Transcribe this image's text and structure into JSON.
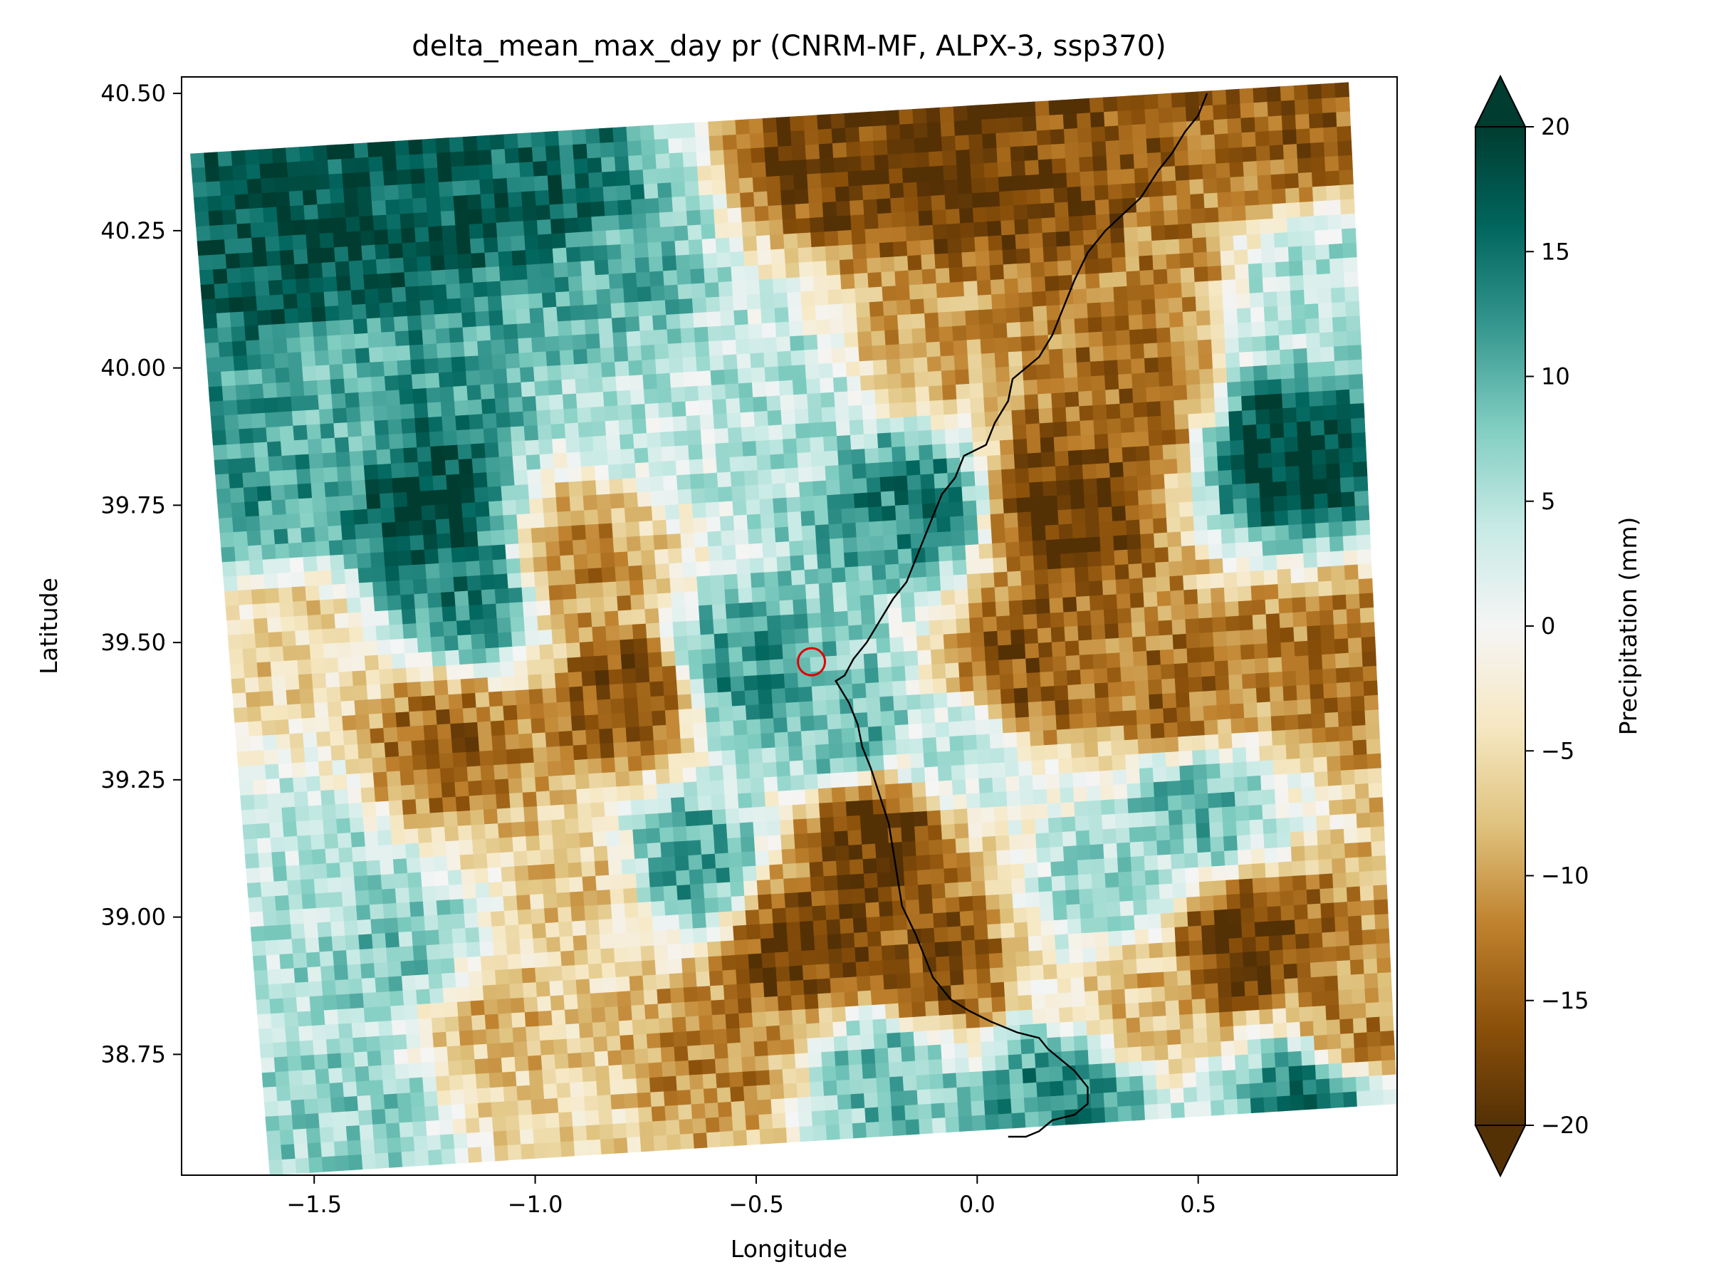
{
  "chart_data": {
    "type": "heatmap",
    "title": "delta_mean_max_day pr (CNRM-MF, ALPX-3, ssp370)",
    "xlabel": "Longitude",
    "ylabel": "Latitude",
    "xlim": [
      -1.8,
      0.95
    ],
    "ylim": [
      38.53,
      40.53
    ],
    "xticks": [
      -1.5,
      -1.0,
      -0.5,
      0.0,
      0.5
    ],
    "xtick_labels": [
      "−1.5",
      "−1.0",
      "−0.5",
      "0.0",
      "0.5"
    ],
    "yticks": [
      38.75,
      39.0,
      39.25,
      39.5,
      39.75,
      40.0,
      40.25,
      40.5
    ],
    "ytick_labels": [
      "38.75",
      "39.00",
      "39.25",
      "39.50",
      "39.75",
      "40.00",
      "40.25",
      "40.50"
    ],
    "colorbar": {
      "label": "Precipitation (mm)",
      "range": [
        -20,
        20
      ],
      "extend": "both",
      "cmap": "BrBG",
      "ticks": [
        -20,
        -15,
        -10,
        -5,
        0,
        5,
        10,
        15,
        20
      ],
      "tick_labels": [
        "−20",
        "−15",
        "−10",
        "−5",
        "0",
        "5",
        "10",
        "15",
        "20"
      ]
    },
    "grid_domain_corners": {
      "upper_left": [
        -1.78,
        40.39
      ],
      "upper_right": [
        0.84,
        40.52
      ],
      "lower_right": [
        0.95,
        38.66
      ],
      "lower_left": [
        -1.6,
        38.53
      ]
    },
    "grid_resolution": {
      "cols": 85,
      "rows": 70
    },
    "value_regions": [
      {
        "lon": -1.55,
        "lat": 40.25,
        "value": 18
      },
      {
        "lon": -1.3,
        "lat": 40.35,
        "value": 17
      },
      {
        "lon": -1.0,
        "lat": 40.3,
        "value": 16
      },
      {
        "lon": -0.85,
        "lat": 40.15,
        "value": 10
      },
      {
        "lon": -1.25,
        "lat": 39.75,
        "value": 19
      },
      {
        "lon": -1.45,
        "lat": 39.9,
        "value": 10
      },
      {
        "lon": -1.6,
        "lat": 39.8,
        "value": 12
      },
      {
        "lon": -1.15,
        "lat": 39.6,
        "value": 14
      },
      {
        "lon": -0.7,
        "lat": 39.9,
        "value": 4
      },
      {
        "lon": -0.45,
        "lat": 39.95,
        "value": 5
      },
      {
        "lon": -0.3,
        "lat": 40.4,
        "value": -18
      },
      {
        "lon": -0.05,
        "lat": 40.35,
        "value": -19
      },
      {
        "lon": 0.25,
        "lat": 40.3,
        "value": -17
      },
      {
        "lon": 0.4,
        "lat": 40.2,
        "value": -12
      },
      {
        "lon": 0.7,
        "lat": 40.45,
        "value": -15
      },
      {
        "lon": -0.1,
        "lat": 40.05,
        "value": -10
      },
      {
        "lon": 0.2,
        "lat": 39.75,
        "value": -19
      },
      {
        "lon": 0.35,
        "lat": 39.95,
        "value": -14
      },
      {
        "lon": 0.7,
        "lat": 39.85,
        "value": 19
      },
      {
        "lon": 0.75,
        "lat": 40.15,
        "value": 5
      },
      {
        "lon": 0.1,
        "lat": 39.45,
        "value": -16
      },
      {
        "lon": 0.45,
        "lat": 39.4,
        "value": -14
      },
      {
        "lon": 0.8,
        "lat": 39.45,
        "value": -13
      },
      {
        "lon": -0.9,
        "lat": 39.65,
        "value": -12
      },
      {
        "lon": -0.78,
        "lat": 39.4,
        "value": -17
      },
      {
        "lon": -1.2,
        "lat": 39.3,
        "value": -15
      },
      {
        "lon": -1.55,
        "lat": 39.5,
        "value": -6
      },
      {
        "lon": -0.55,
        "lat": 39.45,
        "value": 12
      },
      {
        "lon": -0.3,
        "lat": 39.35,
        "value": 10
      },
      {
        "lon": -0.15,
        "lat": 39.75,
        "value": 14
      },
      {
        "lon": 0.5,
        "lat": 39.2,
        "value": 10
      },
      {
        "lon": -0.22,
        "lat": 39.15,
        "value": -19
      },
      {
        "lon": -0.4,
        "lat": 38.95,
        "value": -18
      },
      {
        "lon": -0.1,
        "lat": 38.9,
        "value": -16
      },
      {
        "lon": 0.6,
        "lat": 38.95,
        "value": -19
      },
      {
        "lon": 0.35,
        "lat": 38.85,
        "value": -8
      },
      {
        "lon": 0.85,
        "lat": 38.8,
        "value": -12
      },
      {
        "lon": -0.65,
        "lat": 39.1,
        "value": 11
      },
      {
        "lon": -0.9,
        "lat": 39.05,
        "value": -7
      },
      {
        "lon": -1.3,
        "lat": 38.95,
        "value": 8
      },
      {
        "lon": -1.5,
        "lat": 39.1,
        "value": 5
      },
      {
        "lon": -1.1,
        "lat": 38.8,
        "value": -8
      },
      {
        "lon": -0.6,
        "lat": 38.75,
        "value": -12
      },
      {
        "lon": -0.2,
        "lat": 38.72,
        "value": 9
      },
      {
        "lon": 0.2,
        "lat": 38.68,
        "value": 13
      },
      {
        "lon": 0.75,
        "lat": 38.68,
        "value": 14
      },
      {
        "lon": -1.4,
        "lat": 38.65,
        "value": 7
      },
      {
        "lon": -0.9,
        "lat": 38.62,
        "value": -6
      },
      {
        "lon": -0.05,
        "lat": 39.3,
        "value": 4
      },
      {
        "lon": 0.3,
        "lat": 39.05,
        "value": 6
      }
    ],
    "boundary_line": {
      "color": "#000000",
      "lon": [
        0.52,
        0.5,
        0.47,
        0.44,
        0.41,
        0.37,
        0.33,
        0.29,
        0.25,
        0.22,
        0.2,
        0.17,
        0.14,
        0.08,
        0.07,
        0.04,
        0.02,
        -0.03,
        -0.05,
        -0.08,
        -0.1,
        -0.12,
        -0.14,
        -0.16,
        -0.19,
        -0.22,
        -0.25,
        -0.28,
        -0.3,
        -0.32,
        -0.29,
        -0.27,
        -0.26,
        -0.24,
        -0.22,
        -0.2,
        -0.19,
        -0.18,
        -0.17,
        -0.14,
        -0.12,
        -0.1,
        -0.06,
        -0.02,
        0.03,
        0.09,
        0.14,
        0.16,
        0.19,
        0.22,
        0.25,
        0.25,
        0.22,
        0.17,
        0.14,
        0.11,
        0.07
      ],
      "lat": [
        40.5,
        40.46,
        40.43,
        40.39,
        40.36,
        40.31,
        40.28,
        40.25,
        40.21,
        40.16,
        40.12,
        40.06,
        40.02,
        39.98,
        39.94,
        39.9,
        39.86,
        39.84,
        39.8,
        39.77,
        39.73,
        39.69,
        39.65,
        39.61,
        39.58,
        39.54,
        39.5,
        39.47,
        39.44,
        39.43,
        39.39,
        39.35,
        39.31,
        39.27,
        39.22,
        39.17,
        39.12,
        39.07,
        39.02,
        38.97,
        38.93,
        38.89,
        38.85,
        38.83,
        38.81,
        38.79,
        38.78,
        38.76,
        38.74,
        38.72,
        38.69,
        38.66,
        38.64,
        38.63,
        38.61,
        38.6,
        38.6
      ]
    },
    "marker": {
      "type": "circle",
      "lon": -0.375,
      "lat": 39.465,
      "color": "#e00000"
    }
  }
}
